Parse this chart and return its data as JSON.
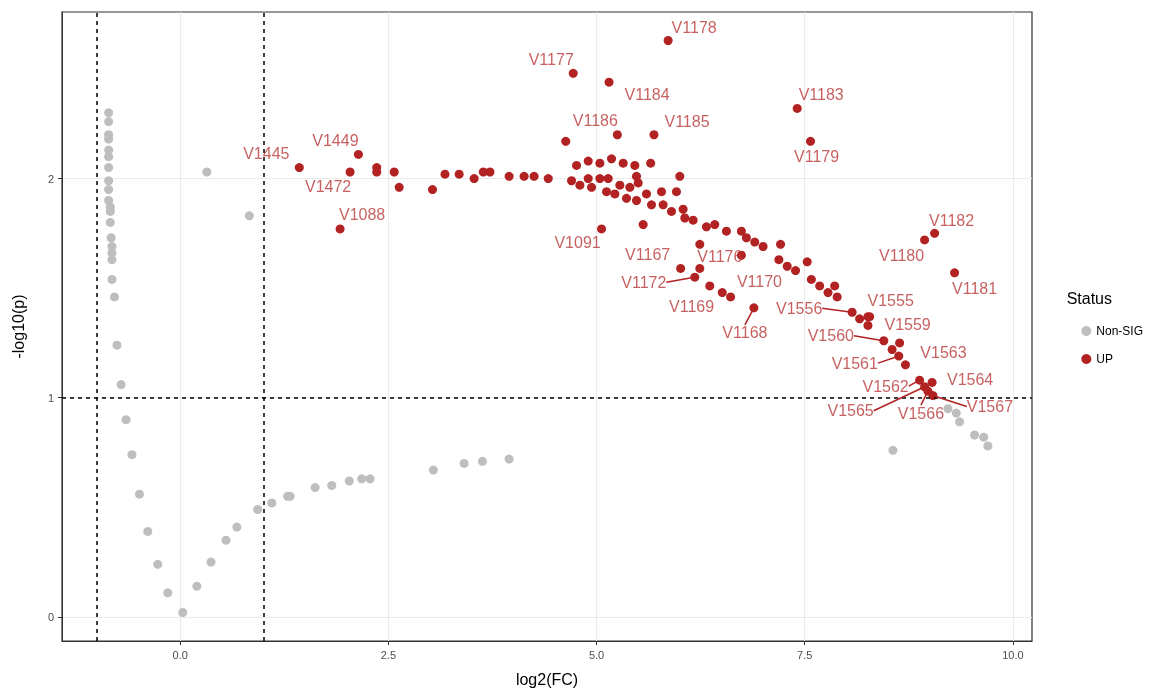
{
  "chart_data": {
    "type": "scatter",
    "xlabel": "log2(FC)",
    "ylabel": "-log10(p)",
    "legend_title": "Status",
    "legend": "right",
    "grid": true,
    "marker": "circle",
    "xlim": [
      -1.42,
      10.23
    ],
    "xticks": [
      {
        "value": 0,
        "label": "0.0"
      },
      2.5,
      {
        "value": 5,
        "label": "5.0"
      },
      7.5,
      {
        "value": 10,
        "label": "10.0"
      }
    ],
    "ylim": [
      -0.11,
      2.76
    ],
    "yticks": [
      0,
      1,
      2
    ],
    "ref_lines": [
      {
        "axis": "x",
        "value": -1,
        "label": null,
        "color": "#000000",
        "line_style": "dashed"
      },
      {
        "axis": "x",
        "value": 1,
        "label": null,
        "color": "#000000",
        "line_style": "dashed"
      },
      {
        "axis": "y",
        "value": 1,
        "label": null,
        "color": "#000000",
        "line_style": "dashed"
      }
    ],
    "series": [
      {
        "name": "Non-SIG",
        "color": "#bebebe",
        "x": [
          -0.86,
          -0.86,
          -0.86,
          -0.86,
          -0.86,
          -0.86,
          -0.86,
          -0.86,
          -0.86,
          -0.86,
          -0.84,
          -0.84,
          -0.84,
          -0.83,
          -0.82,
          -0.82,
          -0.82,
          -0.82,
          -0.79,
          -0.76,
          -0.71,
          -0.65,
          -0.58,
          -0.49,
          -0.39,
          -0.27,
          -0.15,
          0.03,
          0.2,
          0.37,
          0.55,
          0.68,
          0.93,
          1.1,
          1.29,
          1.32,
          1.62,
          1.82,
          2.03,
          2.18,
          2.28,
          3.04,
          3.41,
          3.63,
          3.95,
          0.32,
          0.83,
          8.56,
          9.22,
          9.32,
          9.36,
          9.54,
          9.65,
          9.7
        ],
        "values": [
          2.3,
          2.26,
          2.2,
          2.18,
          2.13,
          2.1,
          2.05,
          1.99,
          1.95,
          1.9,
          1.87,
          1.85,
          1.8,
          1.73,
          1.69,
          1.66,
          1.63,
          1.54,
          1.46,
          1.24,
          1.06,
          0.9,
          0.74,
          0.56,
          0.39,
          0.24,
          0.11,
          0.02,
          0.14,
          0.25,
          0.35,
          0.41,
          0.49,
          0.52,
          0.55,
          0.55,
          0.59,
          0.6,
          0.62,
          0.63,
          0.63,
          0.67,
          0.7,
          0.71,
          0.72,
          2.03,
          1.83,
          0.76,
          0.95,
          0.93,
          0.89,
          0.83,
          0.82,
          0.78
        ]
      },
      {
        "name": "UP",
        "color": "#b22222",
        "x": [
          5.86,
          4.72,
          5.15,
          7.41,
          5.25,
          5.69,
          4.63,
          7.57,
          9.06,
          8.94,
          9.3,
          1.43,
          2.14,
          2.04,
          1.92,
          2.36,
          2.36,
          2.57,
          2.63,
          3.03,
          3.18,
          3.35,
          3.53,
          3.64,
          3.72,
          3.95,
          4.13,
          4.25,
          4.42,
          4.76,
          4.9,
          5.04,
          5.18,
          5.32,
          5.46,
          5.65,
          4.7,
          4.8,
          4.9,
          4.94,
          5.04,
          5.14,
          5.12,
          5.22,
          5.28,
          5.4,
          5.48,
          5.5,
          5.36,
          5.48,
          5.6,
          5.78,
          5.96,
          6.0,
          5.66,
          5.8,
          5.9,
          6.04,
          6.06,
          6.16,
          6.32,
          6.42,
          6.56,
          5.56,
          5.06,
          6.01,
          6.24,
          6.24,
          6.18,
          6.36,
          6.51,
          6.61,
          6.89,
          6.74,
          6.74,
          6.8,
          6.9,
          7.0,
          7.21,
          7.19,
          7.29,
          7.39,
          7.53,
          7.58,
          7.68,
          7.78,
          7.86,
          7.89,
          8.07,
          8.16,
          8.26,
          8.26,
          8.28,
          8.45,
          8.64,
          8.55,
          8.63,
          8.71,
          8.88,
          9.03,
          8.94,
          8.98,
          9.04
        ],
        "values": [
          2.63,
          2.48,
          2.44,
          2.32,
          2.2,
          2.2,
          2.17,
          2.17,
          1.75,
          1.72,
          1.57,
          2.05,
          2.11,
          2.03,
          1.77,
          2.05,
          2.03,
          2.03,
          1.96,
          1.95,
          2.02,
          2.02,
          2.0,
          2.03,
          2.03,
          2.01,
          2.01,
          2.01,
          2.0,
          2.06,
          2.08,
          2.07,
          2.09,
          2.07,
          2.06,
          2.07,
          1.99,
          1.97,
          2.0,
          1.96,
          2.0,
          2.0,
          1.94,
          1.93,
          1.97,
          1.96,
          2.01,
          1.98,
          1.91,
          1.9,
          1.93,
          1.94,
          1.94,
          2.01,
          1.88,
          1.88,
          1.85,
          1.86,
          1.82,
          1.81,
          1.78,
          1.79,
          1.76,
          1.79,
          1.77,
          1.59,
          1.59,
          1.7,
          1.55,
          1.51,
          1.48,
          1.46,
          1.41,
          1.65,
          1.76,
          1.73,
          1.71,
          1.69,
          1.7,
          1.63,
          1.6,
          1.58,
          1.62,
          1.54,
          1.51,
          1.48,
          1.51,
          1.46,
          1.39,
          1.36,
          1.37,
          1.33,
          1.37,
          1.26,
          1.25,
          1.22,
          1.19,
          1.15,
          1.08,
          1.07,
          1.05,
          1.03,
          1.01
        ]
      }
    ],
    "annotations": [
      {
        "text": "V1178",
        "x": 5.86,
        "y": 2.63
      },
      {
        "text": "V1177",
        "x": 4.72,
        "y": 2.48
      },
      {
        "text": "V1184",
        "x": 5.15,
        "y": 2.44
      },
      {
        "text": "V1183",
        "x": 7.41,
        "y": 2.32
      },
      {
        "text": "V1186",
        "x": 5.25,
        "y": 2.2
      },
      {
        "text": "V1185",
        "x": 5.69,
        "y": 2.2
      },
      {
        "text": "V1179",
        "x": 7.57,
        "y": 2.17
      },
      {
        "text": "V1182",
        "x": 9.06,
        "y": 1.75
      },
      {
        "text": "V1180",
        "x": 8.94,
        "y": 1.72
      },
      {
        "text": "V1181",
        "x": 9.3,
        "y": 1.57
      },
      {
        "text": "V1445",
        "x": 1.43,
        "y": 2.05
      },
      {
        "text": "V1449",
        "x": 2.14,
        "y": 2.11
      },
      {
        "text": "V1472",
        "x": 2.04,
        "y": 2.03
      },
      {
        "text": "V1088",
        "x": 1.92,
        "y": 1.77
      },
      {
        "text": "V1091",
        "x": 5.06,
        "y": 1.77
      },
      {
        "text": "V1167",
        "x": 6.01,
        "y": 1.59
      },
      {
        "text": "V1176",
        "x": 6.24,
        "y": 1.59
      },
      {
        "text": "V1172",
        "x": 6.18,
        "y": 1.55
      },
      {
        "text": "V1169",
        "x": 6.61,
        "y": 1.46
      },
      {
        "text": "V1168",
        "x": 6.89,
        "y": 1.41
      },
      {
        "text": "V1170",
        "x": 6.74,
        "y": 1.65
      },
      {
        "text": "V1556",
        "x": 8.07,
        "y": 1.39
      },
      {
        "text": "V1555",
        "x": 8.28,
        "y": 1.37
      },
      {
        "text": "V1560",
        "x": 8.45,
        "y": 1.26
      },
      {
        "text": "V1559",
        "x": 8.64,
        "y": 1.25
      },
      {
        "text": "V1561",
        "x": 8.63,
        "y": 1.19
      },
      {
        "text": "V1563",
        "x": 8.71,
        "y": 1.15
      },
      {
        "text": "V1562",
        "x": 8.88,
        "y": 1.08
      },
      {
        "text": "V1564",
        "x": 9.03,
        "y": 1.07
      },
      {
        "text": "V1565",
        "x": 8.94,
        "y": 1.05
      },
      {
        "text": "V1566",
        "x": 8.98,
        "y": 1.03
      },
      {
        "text": "V1567",
        "x": 9.04,
        "y": 1.01
      }
    ]
  }
}
